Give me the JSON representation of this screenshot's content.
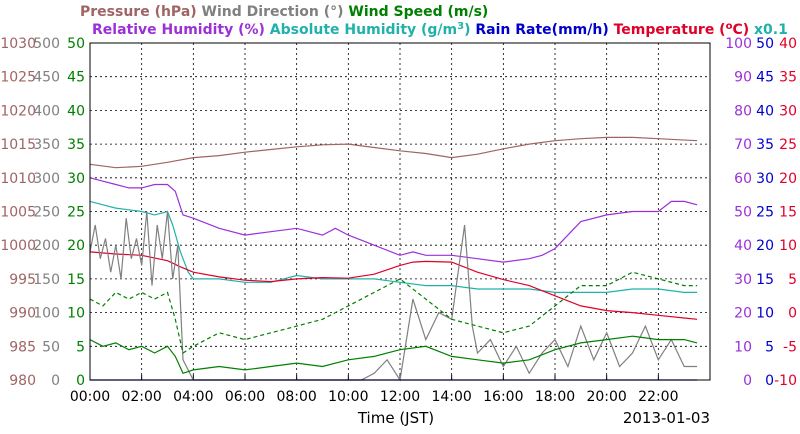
{
  "chart_data": {
    "type": "line",
    "date": "2013-01-03",
    "xlabel": "Time (JST)",
    "x_ticks": [
      "00:00",
      "02:00",
      "04:00",
      "06:00",
      "08:00",
      "10:00",
      "12:00",
      "14:00",
      "16:00",
      "18:00",
      "20:00",
      "22:00"
    ],
    "x_range_hours": [
      0,
      24
    ],
    "grid": true,
    "legend_top": [
      {
        "key": "pressure",
        "text": "Pressure (hPa)",
        "color": "#a06464"
      },
      {
        "key": "wind_direction",
        "text": "Wind Direction (°)",
        "color": "#808080"
      },
      {
        "key": "wind_speed",
        "text": "Wind Speed (m/s)",
        "color": "#008000"
      }
    ],
    "legend_bottom": [
      {
        "key": "relative_humidity",
        "text": "Relative Humidity (%)",
        "color": "#9b30d9"
      },
      {
        "key": "absolute_humidity_pre",
        "text": "Absolute Humidity (g/m",
        "color": "#20b2aa"
      },
      {
        "key": "absolute_humidity_sup",
        "text": "3",
        "color": "#20b2aa"
      },
      {
        "key": "absolute_humidity_post",
        "text": ")",
        "color": "#20b2aa"
      },
      {
        "key": "rain_rate",
        "text": "Rain Rate(mm/h)",
        "color": "#0000cc"
      },
      {
        "key": "temperature_pre",
        "text": "Temperature (",
        "color": "#e0002a"
      },
      {
        "key": "temperature_sup",
        "text": "o",
        "color": "#e0002a"
      },
      {
        "key": "temperature_post",
        "text": "C)",
        "color": "#e0002a"
      },
      {
        "key": "abs_humidity_factor",
        "text": "x0.1",
        "color": "#20b2aa"
      }
    ],
    "axes": {
      "pressure": {
        "ticks": [
          "1030",
          "1025",
          "1020",
          "1015",
          "1010",
          "1005",
          "1000",
          "995",
          "990",
          "985",
          "980"
        ],
        "range": [
          980,
          1030
        ],
        "color": "#a06464"
      },
      "wind_direction": {
        "ticks": [
          "500",
          "450",
          "400",
          "350",
          "300",
          "250",
          "200",
          "150",
          "100",
          "50",
          "0"
        ],
        "range": [
          0,
          500
        ],
        "color": "#808080"
      },
      "wind_speed": {
        "ticks": [
          "50",
          "45",
          "40",
          "35",
          "30",
          "25",
          "20",
          "15",
          "10",
          "5",
          "0"
        ],
        "range": [
          0,
          50
        ],
        "color": "#008000"
      },
      "relative_humidity": {
        "ticks": [
          "100",
          "90",
          "80",
          "70",
          "60",
          "50",
          "40",
          "30",
          "20",
          "10",
          "0"
        ],
        "range": [
          0,
          100
        ],
        "color": "#9b30d9"
      },
      "rain_rate": {
        "ticks": [
          "50",
          "45",
          "40",
          "35",
          "30",
          "25",
          "20",
          "15",
          "10",
          "5",
          "0"
        ],
        "range": [
          0,
          50
        ],
        "color": "#0000cc"
      },
      "temperature": {
        "ticks": [
          "40",
          "35",
          "30",
          "25",
          "20",
          "15",
          "10",
          "5",
          "0",
          "-5",
          "-10"
        ],
        "range": [
          -10,
          40
        ],
        "color": "#e0002a"
      }
    },
    "series": [
      {
        "name": "Pressure",
        "axis": "pressure",
        "color": "#a06464",
        "x": [
          0,
          1,
          2,
          3,
          4,
          5,
          6,
          7,
          8,
          9,
          10,
          11,
          12,
          13,
          14,
          15,
          16,
          17,
          18,
          19,
          20,
          21,
          22,
          23.5
        ],
        "y": [
          1012,
          1011.5,
          1011.7,
          1012.3,
          1013,
          1013.3,
          1013.8,
          1014.2,
          1014.6,
          1014.9,
          1015,
          1014.5,
          1014,
          1013.6,
          1013,
          1013.5,
          1014.3,
          1015,
          1015.5,
          1015.8,
          1016,
          1016,
          1015.8,
          1015.5
        ]
      },
      {
        "name": "Relative Humidity",
        "axis": "relative_humidity",
        "color": "#9b30d9",
        "x": [
          0,
          0.5,
          1,
          1.5,
          2,
          2.5,
          3,
          3.3,
          3.6,
          4,
          5,
          6,
          7,
          8,
          9,
          9.5,
          10,
          11,
          12,
          12.5,
          13,
          14,
          15,
          16,
          17,
          17.5,
          18,
          18.5,
          19,
          20,
          21,
          22,
          22.5,
          23,
          23.5
        ],
        "y": [
          60,
          59,
          58,
          57,
          57,
          58,
          58,
          56,
          49,
          48,
          45,
          43,
          44,
          45,
          43,
          45,
          43,
          40,
          37,
          38,
          37,
          37,
          36,
          35,
          36,
          37,
          39,
          43,
          47,
          49,
          50,
          50,
          53,
          53,
          52
        ]
      },
      {
        "name": "Absolute Humidity",
        "axis": "relative_humidity",
        "color": "#20b2aa",
        "x": [
          0,
          0.5,
          1,
          2,
          2.5,
          3,
          3.2,
          3.5,
          3.8,
          4,
          5,
          6,
          7,
          8,
          9,
          10,
          11,
          12,
          13,
          14,
          15,
          16,
          17,
          18,
          19,
          20,
          21,
          22,
          23,
          23.5
        ],
        "y": [
          53,
          52,
          51,
          50,
          49,
          50,
          46,
          38,
          32,
          30,
          30,
          29,
          29,
          31,
          30,
          30,
          30,
          29,
          28,
          28,
          27,
          27,
          27,
          26,
          26,
          26,
          27,
          27,
          26,
          26
        ]
      },
      {
        "name": "Temperature",
        "axis": "temperature",
        "color": "#e0002a",
        "x": [
          0,
          1,
          2,
          3,
          3.5,
          4,
          5,
          6,
          7,
          8,
          9,
          10,
          11,
          12,
          12.5,
          13,
          14,
          15,
          16,
          17,
          18,
          19,
          20,
          21,
          22,
          23,
          23.5
        ],
        "y": [
          9,
          8.7,
          8.5,
          7.7,
          6.8,
          6,
          5.3,
          4.8,
          4.6,
          5,
          5.2,
          5.1,
          5.7,
          7,
          7.5,
          7.6,
          7.5,
          6,
          4.9,
          4,
          2.5,
          1,
          0.3,
          0,
          -0.4,
          -0.8,
          -1
        ]
      },
      {
        "name": "Wind Direction",
        "axis": "wind_direction",
        "color": "#808080",
        "x": [
          0,
          0.2,
          0.4,
          0.6,
          0.8,
          1,
          1.2,
          1.4,
          1.6,
          1.8,
          2,
          2.2,
          2.4,
          2.6,
          2.8,
          3,
          3.2,
          3.4,
          3.6,
          4,
          5,
          6,
          7,
          8,
          9,
          10,
          10.5,
          11,
          11.5,
          12,
          12.5,
          13,
          13.5,
          14,
          14.5,
          14.8,
          15,
          15.5,
          16,
          16.5,
          17,
          17.5,
          18,
          18.5,
          19,
          19.5,
          20,
          20.5,
          21,
          21.5,
          22,
          22.5,
          23,
          23.5
        ],
        "y": [
          190,
          230,
          180,
          210,
          160,
          200,
          150,
          240,
          180,
          210,
          170,
          250,
          140,
          230,
          180,
          250,
          150,
          200,
          30,
          0,
          0,
          0,
          0,
          0,
          0,
          0,
          0,
          10,
          30,
          0,
          120,
          60,
          100,
          90,
          230,
          80,
          40,
          60,
          20,
          50,
          10,
          40,
          60,
          20,
          80,
          30,
          70,
          20,
          40,
          80,
          30,
          60,
          20,
          20
        ]
      },
      {
        "name": "Wind Speed",
        "axis": "wind_speed",
        "color": "#008000",
        "x": [
          0,
          0.5,
          1,
          1.5,
          2,
          2.5,
          3,
          3.3,
          3.6,
          4,
          5,
          6,
          7,
          8,
          9,
          10,
          11,
          12,
          13,
          14,
          15,
          16,
          17,
          18,
          19,
          20,
          21,
          22,
          23,
          23.5
        ],
        "y": [
          6,
          5,
          5.5,
          4.5,
          5,
          4,
          5,
          3.5,
          1,
          1.5,
          2,
          1.5,
          2,
          2.5,
          2,
          3,
          3.5,
          4.5,
          5,
          3.5,
          3,
          2.5,
          3,
          4.5,
          5.5,
          6,
          6.5,
          6,
          6,
          5.5
        ]
      },
      {
        "name": "Wind Speed Gust",
        "axis": "wind_speed",
        "color": "#008000",
        "dashed": true,
        "x": [
          0,
          0.5,
          1,
          1.5,
          2,
          2.5,
          3,
          3.3,
          3.6,
          4,
          5,
          6,
          7,
          8,
          9,
          10,
          11,
          12,
          13,
          14,
          15,
          16,
          17,
          18,
          19,
          20,
          21,
          22,
          23,
          23.5
        ],
        "y": [
          12,
          11,
          13,
          12,
          13,
          12,
          13,
          9,
          4,
          5,
          7,
          6,
          7,
          8,
          9,
          11,
          13,
          15,
          12,
          9,
          8,
          7,
          8,
          11,
          14,
          14,
          16,
          15,
          14,
          14
        ]
      },
      {
        "name": "Rain Rate",
        "axis": "rain_rate",
        "color": "#0000cc",
        "x": [
          0,
          23.5
        ],
        "y": [
          0,
          0
        ]
      }
    ]
  }
}
